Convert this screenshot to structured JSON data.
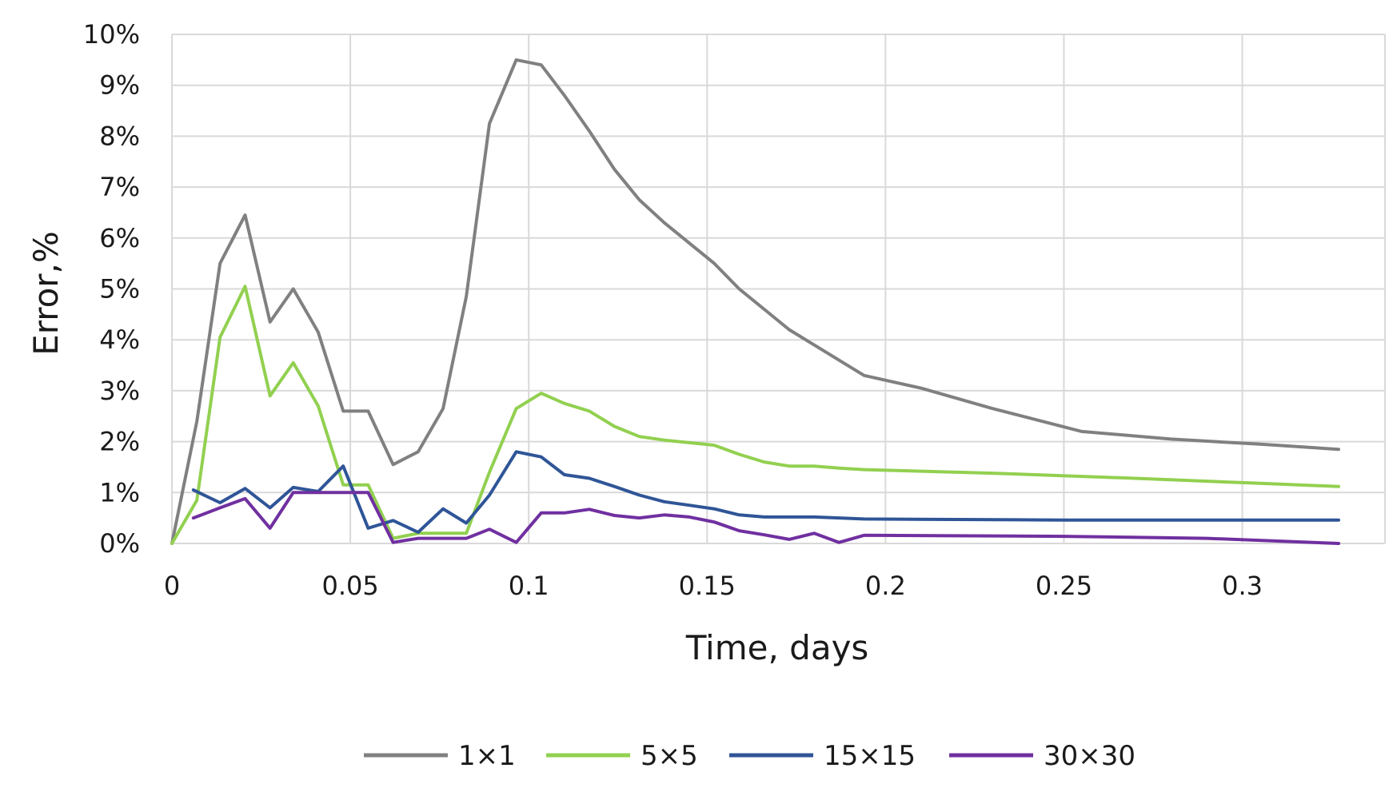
{
  "chart_data": {
    "type": "line",
    "title": "",
    "xlabel": "Time, days",
    "ylabel": "Error,%",
    "xlim": [
      0,
      0.34
    ],
    "ylim": [
      0,
      10
    ],
    "x_ticks": [
      0,
      0.05,
      0.1,
      0.15,
      0.2,
      0.25,
      0.3
    ],
    "x_tick_labels": [
      "0",
      "0.05",
      "0.1",
      "0.15",
      "0.2",
      "0.25",
      "0.3"
    ],
    "y_ticks": [
      0,
      1,
      2,
      3,
      4,
      5,
      6,
      7,
      8,
      9,
      10
    ],
    "y_tick_labels": [
      "0%",
      "1%",
      "2%",
      "3%",
      "4%",
      "5%",
      "6%",
      "7%",
      "8%",
      "9%",
      "10%"
    ],
    "grid": true,
    "legend_position": "bottom",
    "series": [
      {
        "name": "1×1",
        "color": "#808080",
        "points": [
          [
            0,
            0
          ],
          [
            0.007,
            2.4
          ],
          [
            0.0135,
            5.5
          ],
          [
            0.0205,
            6.45
          ],
          [
            0.0275,
            4.35
          ],
          [
            0.034,
            5.0
          ],
          [
            0.041,
            4.15
          ],
          [
            0.048,
            2.6
          ],
          [
            0.055,
            2.6
          ],
          [
            0.062,
            1.55
          ],
          [
            0.069,
            1.8
          ],
          [
            0.076,
            2.65
          ],
          [
            0.0825,
            4.85
          ],
          [
            0.089,
            8.25
          ],
          [
            0.0965,
            9.5
          ],
          [
            0.1035,
            9.4
          ],
          [
            0.11,
            8.8
          ],
          [
            0.117,
            8.1
          ],
          [
            0.124,
            7.35
          ],
          [
            0.131,
            6.75
          ],
          [
            0.138,
            6.3
          ],
          [
            0.145,
            5.9
          ],
          [
            0.152,
            5.5
          ],
          [
            0.159,
            5.0
          ],
          [
            0.166,
            4.6
          ],
          [
            0.173,
            4.2
          ],
          [
            0.18,
            3.9
          ],
          [
            0.187,
            3.6
          ],
          [
            0.194,
            3.3
          ],
          [
            0.21,
            3.05
          ],
          [
            0.23,
            2.65
          ],
          [
            0.255,
            2.2
          ],
          [
            0.28,
            2.05
          ],
          [
            0.305,
            1.95
          ],
          [
            0.327,
            1.85
          ]
        ]
      },
      {
        "name": "5×5",
        "color": "#92d050",
        "points": [
          [
            0,
            0
          ],
          [
            0.007,
            0.85
          ],
          [
            0.0135,
            4.05
          ],
          [
            0.0205,
            5.05
          ],
          [
            0.0275,
            2.9
          ],
          [
            0.034,
            3.55
          ],
          [
            0.041,
            2.7
          ],
          [
            0.048,
            1.15
          ],
          [
            0.055,
            1.15
          ],
          [
            0.062,
            0.1
          ],
          [
            0.069,
            0.2
          ],
          [
            0.076,
            0.2
          ],
          [
            0.0825,
            0.2
          ],
          [
            0.089,
            1.4
          ],
          [
            0.0965,
            2.65
          ],
          [
            0.1035,
            2.95
          ],
          [
            0.11,
            2.75
          ],
          [
            0.117,
            2.6
          ],
          [
            0.124,
            2.3
          ],
          [
            0.131,
            2.1
          ],
          [
            0.138,
            2.03
          ],
          [
            0.145,
            1.98
          ],
          [
            0.152,
            1.93
          ],
          [
            0.159,
            1.75
          ],
          [
            0.166,
            1.6
          ],
          [
            0.173,
            1.52
          ],
          [
            0.18,
            1.52
          ],
          [
            0.187,
            1.48
          ],
          [
            0.194,
            1.45
          ],
          [
            0.23,
            1.38
          ],
          [
            0.27,
            1.28
          ],
          [
            0.305,
            1.18
          ],
          [
            0.327,
            1.12
          ]
        ]
      },
      {
        "name": "15×15",
        "color": "#2f5597",
        "points": [
          [
            0.006,
            1.05
          ],
          [
            0.0135,
            0.8
          ],
          [
            0.0205,
            1.08
          ],
          [
            0.0275,
            0.7
          ],
          [
            0.034,
            1.1
          ],
          [
            0.041,
            1.02
          ],
          [
            0.048,
            1.52
          ],
          [
            0.055,
            0.3
          ],
          [
            0.062,
            0.45
          ],
          [
            0.069,
            0.22
          ],
          [
            0.076,
            0.68
          ],
          [
            0.0825,
            0.4
          ],
          [
            0.089,
            0.95
          ],
          [
            0.0965,
            1.8
          ],
          [
            0.1035,
            1.7
          ],
          [
            0.11,
            1.35
          ],
          [
            0.117,
            1.28
          ],
          [
            0.124,
            1.12
          ],
          [
            0.131,
            0.95
          ],
          [
            0.138,
            0.82
          ],
          [
            0.145,
            0.75
          ],
          [
            0.152,
            0.68
          ],
          [
            0.159,
            0.56
          ],
          [
            0.166,
            0.52
          ],
          [
            0.18,
            0.52
          ],
          [
            0.194,
            0.48
          ],
          [
            0.25,
            0.46
          ],
          [
            0.327,
            0.46
          ]
        ]
      },
      {
        "name": "30×30",
        "color": "#7030a0",
        "points": [
          [
            0.006,
            0.5
          ],
          [
            0.0135,
            0.7
          ],
          [
            0.0205,
            0.88
          ],
          [
            0.0275,
            0.3
          ],
          [
            0.034,
            1.0
          ],
          [
            0.041,
            1.0
          ],
          [
            0.048,
            1.0
          ],
          [
            0.055,
            1.0
          ],
          [
            0.062,
            0.02
          ],
          [
            0.069,
            0.1
          ],
          [
            0.076,
            0.1
          ],
          [
            0.0825,
            0.1
          ],
          [
            0.089,
            0.28
          ],
          [
            0.0965,
            0.02
          ],
          [
            0.1035,
            0.6
          ],
          [
            0.11,
            0.6
          ],
          [
            0.117,
            0.67
          ],
          [
            0.124,
            0.55
          ],
          [
            0.131,
            0.5
          ],
          [
            0.138,
            0.56
          ],
          [
            0.145,
            0.52
          ],
          [
            0.152,
            0.42
          ],
          [
            0.159,
            0.25
          ],
          [
            0.166,
            0.17
          ],
          [
            0.173,
            0.08
          ],
          [
            0.18,
            0.2
          ],
          [
            0.187,
            0.02
          ],
          [
            0.194,
            0.16
          ],
          [
            0.25,
            0.14
          ],
          [
            0.29,
            0.1
          ],
          [
            0.327,
            0.0
          ]
        ]
      }
    ]
  }
}
